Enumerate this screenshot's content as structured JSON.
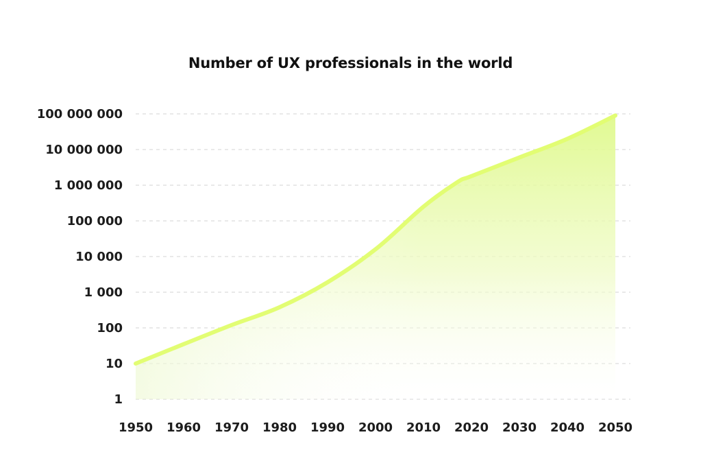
{
  "chart_data": {
    "type": "area",
    "title": "Number of UX professionals in the world",
    "xlabel": "",
    "ylabel": "",
    "y_scale": "log",
    "x_ticks": [
      "1950",
      "1960",
      "1970",
      "1980",
      "1990",
      "2000",
      "2010",
      "2020",
      "2030",
      "2040",
      "2050"
    ],
    "y_ticks": [
      "1",
      "10",
      "100",
      "1 000",
      "10 000",
      "100 000",
      "1 000 000",
      "10 000 000",
      "100 000 000"
    ],
    "y_tick_values": [
      1,
      10,
      100,
      1000,
      10000,
      100000,
      1000000,
      10000000,
      100000000
    ],
    "xlim": [
      1950,
      2050
    ],
    "ylim": [
      1,
      100000000
    ],
    "grid": "horizontal-dashed",
    "legend": "none",
    "series": [
      {
        "x": [
          1950,
          1960,
          1970,
          1980,
          1990,
          2000,
          2010,
          2017,
          2020,
          2030,
          2040,
          2050
        ],
        "values": [
          10,
          35,
          120,
          380,
          1900,
          16000,
          250000,
          1200000,
          1800000,
          6000000,
          20000000,
          90000000
        ]
      }
    ],
    "colors": {
      "line": "#e2fd73",
      "fill_top": "#dcf78a",
      "fill_bottom": "#ffffff",
      "grid": "#e2e2e2"
    }
  }
}
